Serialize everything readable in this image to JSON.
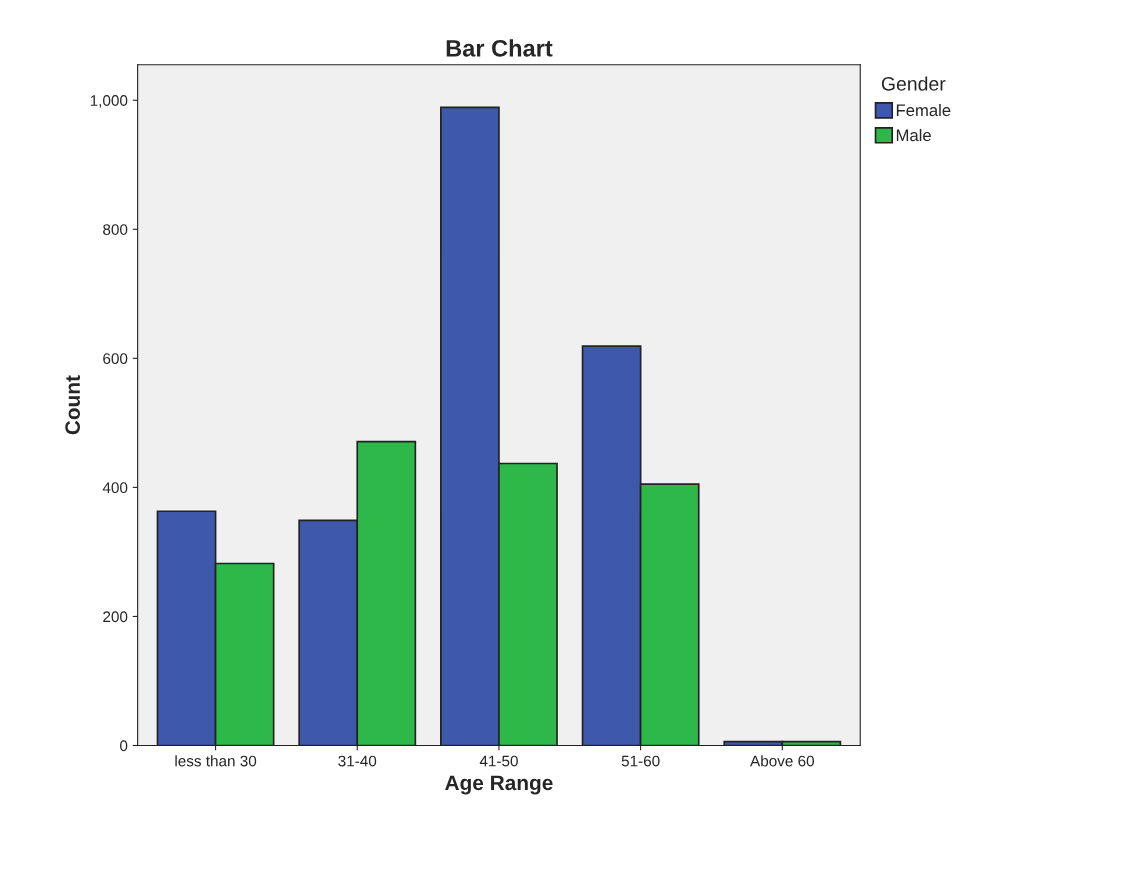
{
  "chart_data": {
    "type": "bar",
    "title": "Bar Chart",
    "xlabel": "Age Range",
    "ylabel": "Count",
    "legend_title": "Gender",
    "categories": [
      "less than 30",
      "31-40",
      "41-50",
      "51-60",
      "Above 60"
    ],
    "series": [
      {
        "name": "Female",
        "color": "#3e58ac",
        "values": [
          363,
          349,
          989,
          619,
          6
        ]
      },
      {
        "name": "Male",
        "color": "#2fb84a",
        "values": [
          282,
          471,
          437,
          405,
          6
        ]
      }
    ],
    "ylim": [
      0,
      1055
    ],
    "yticks": [
      0,
      200,
      400,
      600,
      800,
      {
        "value": 1000,
        "label": "1,000"
      }
    ],
    "grid": false,
    "legend": "top right"
  }
}
